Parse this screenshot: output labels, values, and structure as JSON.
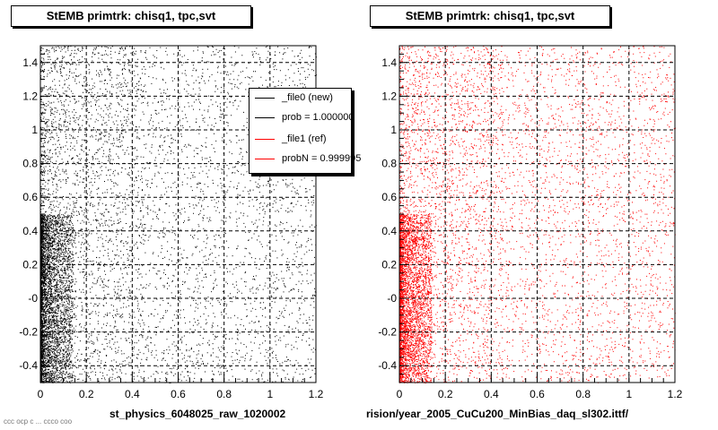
{
  "pads": [
    {
      "title": "StEMB primtrk: chisq1, tpc,svt",
      "xtitle": "st_physics_6048025_raw_1020002",
      "marker_color": "#000000"
    },
    {
      "title": "StEMB primtrk: chisq1, tpc,svt",
      "xtitle": "rision/year_2005_CuCu200_MinBias_daq_sl302.ittf/",
      "marker_color": "#ff0000"
    }
  ],
  "legend": {
    "entries": [
      {
        "label": "_file0 (new)",
        "color": "#000000"
      },
      {
        "label": "prob = 1.000000",
        "color": "#000000"
      },
      {
        "label": "_file1 (ref)",
        "color": "#ff0000"
      },
      {
        "label": "probN = 0.999995",
        "color": "#ff0000"
      }
    ]
  },
  "corner_note": "ccc ocp c ... ccco coo",
  "chart_data": [
    {
      "type": "scatter",
      "title": "StEMB primtrk: chisq1, tpc,svt",
      "xlabel": "st_physics_6048025_raw_1020002",
      "ylabel": "",
      "xlim": [
        0,
        1.2
      ],
      "ylim": [
        -0.5,
        1.5
      ],
      "xticks": [
        "0",
        "0.2",
        "0.4",
        "0.6",
        "0.8",
        "1",
        "1.2"
      ],
      "yticks": [
        "-0.4",
        "-0.2",
        "-0",
        "0.2",
        "0.4",
        "0.6",
        "0.8",
        "1",
        "1.2",
        "1.4"
      ],
      "grid": true,
      "legend": "top-right",
      "series": [
        {
          "name": "_file0 (new)",
          "color": "#000000",
          "n_points": 9000,
          "density": "highest near x=0 (x<0.1) for y<0.5; sparse uniform elsewhere"
        }
      ]
    },
    {
      "type": "scatter",
      "title": "StEMB primtrk: chisq1, tpc,svt",
      "xlabel": "rision/year_2005_CuCu200_MinBias_daq_sl302.ittf/",
      "ylabel": "",
      "xlim": [
        0,
        1.2
      ],
      "ylim": [
        -0.5,
        1.5
      ],
      "xticks": [
        "0",
        "0.2",
        "0.4",
        "0.6",
        "0.8",
        "1",
        "1.2"
      ],
      "yticks": [
        "-0.4",
        "-0.2",
        "-0",
        "0.2",
        "0.4",
        "0.6",
        "0.8",
        "1",
        "1.2",
        "1.4"
      ],
      "grid": true,
      "series": [
        {
          "name": "_file1 (ref)",
          "color": "#ff0000",
          "n_points": 9000,
          "density": "highest near x=0 (x<0.1) for y<0.5; sparse uniform elsewhere"
        }
      ]
    }
  ]
}
